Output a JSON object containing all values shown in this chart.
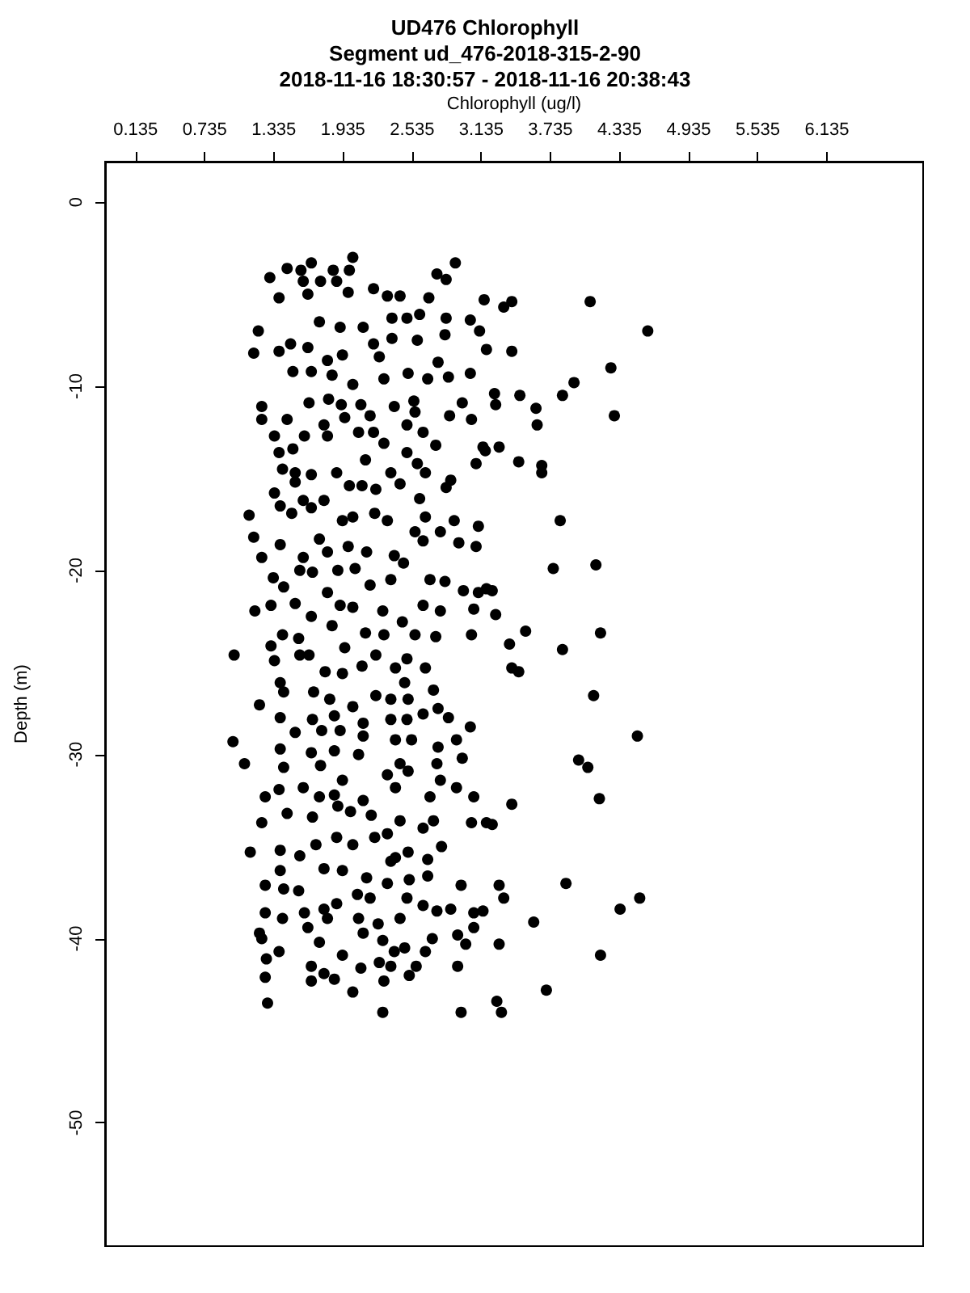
{
  "chart_data": {
    "type": "scatter",
    "title": "UD476 Chlorophyll",
    "subtitle": "Segment ud_476-2018-315-2-90\n2018-11-16 18:30:57 - 2018-11-16 20:38:43",
    "xlabel": "Chlorophyll (ug/l)",
    "ylabel": "Depth (m)",
    "xlim": [
      -0.13,
      6.97
    ],
    "ylim": [
      -56.7,
      2.2
    ],
    "xticks": [
      0.135,
      0.735,
      1.335,
      1.935,
      2.535,
      3.135,
      3.735,
      4.335,
      4.935,
      5.535,
      6.135
    ],
    "yticks": [
      0,
      -10,
      -20,
      -30,
      -40,
      -50
    ],
    "grid": false,
    "marker": "circle",
    "series": [
      {
        "color": "#000000",
        "x": [
          4.58,
          4.08,
          4.26,
          4.29,
          3.94,
          3.84,
          3.61,
          3.62,
          3.66,
          3.66,
          3.46,
          3.82,
          3.76,
          4.13,
          4.17,
          3.84,
          4.11,
          4.49,
          3.98,
          4.06,
          4.16,
          4.51,
          4.34,
          3.87,
          4.17,
          3.7,
          3.59,
          3.31,
          2.96,
          2.28,
          1.28,
          0.98,
          0.99,
          1.08,
          1.12,
          1.16,
          1.2,
          2.91,
          2.02,
          1.13,
          1.23,
          1.26,
          1.27,
          3.52,
          3.38,
          3.4,
          3.46,
          3.4,
          3.18,
          3.23,
          3.29,
          3.33,
          3.29,
          3.07,
          3.18,
          3.26,
          3.4,
          3.33,
          3.4,
          3.18,
          3.25,
          3.17,
          1.3,
          1.45,
          1.57,
          1.66,
          1.85,
          1.99,
          1.74,
          1.59,
          1.38,
          1.63,
          1.88,
          1.98,
          2.2,
          2.32,
          2.43,
          2.68,
          2.75,
          2.83,
          3.16,
          1.73,
          1.91,
          2.11,
          2.36,
          2.49,
          2.6,
          2.83,
          3.04,
          3.12,
          1.38,
          1.48,
          1.63,
          1.8,
          1.93,
          2.2,
          2.25,
          2.36,
          2.58,
          2.82,
          1.5,
          1.66,
          1.84,
          2.02,
          2.29,
          2.5,
          2.67,
          2.76,
          2.85,
          3.04,
          1.23,
          1.23,
          1.45,
          1.64,
          1.81,
          1.92,
          2.09,
          2.17,
          2.38,
          2.55,
          2.56,
          2.86,
          2.97,
          3.05,
          3.26,
          3.47,
          1.34,
          1.38,
          1.5,
          1.6,
          1.77,
          1.8,
          1.95,
          2.07,
          2.2,
          2.29,
          2.49,
          2.63,
          2.74,
          2.87,
          3.15,
          3.29,
          3.09,
          1.41,
          1.52,
          1.66,
          1.88,
          2.13,
          2.35,
          2.49,
          2.65,
          2.58,
          1.34,
          1.52,
          1.59,
          1.77,
          1.99,
          2.1,
          2.22,
          2.43,
          2.6,
          2.83,
          1.16,
          1.23,
          1.39,
          1.49,
          1.66,
          1.93,
          2.02,
          2.21,
          2.32,
          2.65,
          2.9,
          3.11,
          1.39,
          1.59,
          1.73,
          1.8,
          1.98,
          2.14,
          2.38,
          2.56,
          2.63,
          2.78,
          2.94,
          3.09,
          1.33,
          1.42,
          1.56,
          1.67,
          1.89,
          2.04,
          2.17,
          2.35,
          2.46,
          2.69,
          2.82,
          2.98,
          3.11,
          3.23,
          1.17,
          1.31,
          1.52,
          1.66,
          1.8,
          1.91,
          2.02,
          2.28,
          2.45,
          2.63,
          2.78,
          3.07,
          1.31,
          1.41,
          1.55,
          1.64,
          1.84,
          1.95,
          2.13,
          2.29,
          2.49,
          2.56,
          2.74,
          3.05,
          1.34,
          1.39,
          1.56,
          1.78,
          1.93,
          2.1,
          2.22,
          2.39,
          2.47,
          2.65,
          2.72,
          1.21,
          1.42,
          1.68,
          1.82,
          2.02,
          2.22,
          2.35,
          2.5,
          2.63,
          2.76,
          1.39,
          1.67,
          1.86,
          2.11,
          2.35,
          2.49,
          2.85,
          3.04,
          1.39,
          1.52,
          1.75,
          1.91,
          2.11,
          2.39,
          2.53,
          2.76,
          2.92,
          2.97,
          1.66,
          1.86,
          2.07,
          2.43,
          2.75,
          1.42,
          1.74,
          1.93,
          2.32,
          2.5,
          2.78,
          2.92,
          1.26,
          1.38,
          1.59,
          1.73,
          1.86,
          2.11,
          2.39,
          2.69,
          3.07,
          1.45,
          1.23,
          1.67,
          1.89,
          2.0,
          2.18,
          2.43,
          2.63,
          2.72,
          3.05,
          1.39,
          1.56,
          1.7,
          1.88,
          2.02,
          2.21,
          2.32,
          2.39,
          2.5,
          2.67,
          2.79,
          1.39,
          1.77,
          1.93,
          2.14,
          2.35,
          2.51,
          2.67,
          2.96,
          1.26,
          1.42,
          1.55,
          1.77,
          1.88,
          2.06,
          2.17,
          2.32,
          2.49,
          2.63,
          2.75,
          2.87,
          3.15,
          1.26,
          1.41,
          1.6,
          1.8,
          2.07,
          2.24,
          2.43,
          1.21,
          1.38,
          1.63,
          1.73,
          1.93,
          2.11,
          2.28,
          2.38,
          2.47,
          2.65,
          2.71,
          2.93,
          3.0,
          3.07,
          1.66,
          1.77,
          1.86,
          2.09,
          2.25,
          2.35,
          2.51,
          2.57,
          2.93,
          1.66,
          2.02,
          2.29,
          3.27
        ],
        "values": [
          -7.0,
          -5.4,
          -9.0,
          -11.6,
          -9.8,
          -10.5,
          -11.2,
          -12.1,
          -14.3,
          -14.7,
          -14.1,
          -17.3,
          -19.9,
          -19.7,
          -23.4,
          -24.3,
          -26.8,
          -29.0,
          -30.3,
          -30.7,
          -32.4,
          -37.8,
          -38.4,
          -37.0,
          -40.9,
          -42.8,
          -39.1,
          -44.0,
          -44.0,
          -44.0,
          -43.5,
          -29.3,
          -24.6,
          -30.5,
          -17.0,
          -8.2,
          -7.0,
          -3.3,
          -3.0,
          -35.3,
          -40.0,
          -42.1,
          -41.1,
          -23.3,
          -24.0,
          -25.3,
          -25.5,
          -32.7,
          -33.7,
          -33.8,
          -37.1,
          -37.8,
          -40.3,
          -38.6,
          -21.0,
          -22.4,
          -5.4,
          -5.7,
          -8.1,
          -8.0,
          -10.4,
          -13.5,
          -4.1,
          -3.6,
          -3.7,
          -3.3,
          -3.7,
          -3.7,
          -4.3,
          -4.3,
          -5.2,
          -5.0,
          -4.3,
          -4.9,
          -4.7,
          -5.1,
          -5.1,
          -5.2,
          -3.9,
          -4.2,
          -5.3,
          -6.5,
          -6.8,
          -6.8,
          -6.3,
          -6.3,
          -6.1,
          -6.3,
          -6.4,
          -7.0,
          -8.1,
          -7.7,
          -7.9,
          -8.6,
          -8.3,
          -7.7,
          -8.4,
          -7.4,
          -7.5,
          -7.2,
          -9.2,
          -9.2,
          -9.4,
          -9.9,
          -9.6,
          -9.3,
          -9.6,
          -8.7,
          -9.5,
          -9.3,
          -11.1,
          -11.8,
          -11.8,
          -10.9,
          -10.7,
          -11.0,
          -11.0,
          -11.6,
          -11.1,
          -10.8,
          -11.4,
          -11.6,
          -10.9,
          -11.8,
          -11.0,
          -10.5,
          -12.7,
          -13.6,
          -13.4,
          -12.7,
          -12.1,
          -12.7,
          -11.7,
          -12.5,
          -12.5,
          -13.1,
          -12.1,
          -12.5,
          -13.2,
          -15.1,
          -13.3,
          -13.3,
          -14.2,
          -14.5,
          -14.7,
          -14.8,
          -14.7,
          -14.0,
          -14.7,
          -13.6,
          -14.7,
          -14.2,
          -15.8,
          -15.2,
          -16.2,
          -16.2,
          -15.4,
          -15.4,
          -15.6,
          -15.3,
          -16.1,
          -15.5,
          -18.2,
          -19.3,
          -16.5,
          -16.9,
          -16.6,
          -17.3,
          -17.1,
          -16.9,
          -17.3,
          -17.1,
          -17.3,
          -17.6,
          -18.6,
          -19.3,
          -18.3,
          -19.0,
          -18.7,
          -19.0,
          -19.2,
          -17.9,
          -18.4,
          -17.9,
          -18.5,
          -18.7,
          -20.4,
          -20.9,
          -20.0,
          -20.1,
          -20.0,
          -19.9,
          -20.8,
          -20.5,
          -19.6,
          -20.5,
          -20.6,
          -21.1,
          -21.2,
          -21.1,
          -22.2,
          -21.9,
          -21.8,
          -22.5,
          -21.2,
          -21.9,
          -22.0,
          -22.2,
          -22.8,
          -21.9,
          -22.2,
          -22.1,
          -24.1,
          -23.5,
          -23.7,
          -24.6,
          -23.0,
          -24.2,
          -23.4,
          -23.5,
          -24.8,
          -23.5,
          -23.6,
          -23.5,
          -24.9,
          -26.1,
          -24.6,
          -25.5,
          -25.6,
          -25.2,
          -24.6,
          -25.3,
          -26.1,
          -25.3,
          -26.5,
          -27.3,
          -26.6,
          -26.6,
          -27.0,
          -27.4,
          -26.8,
          -27.0,
          -27.0,
          -27.8,
          -27.5,
          -28.0,
          -28.1,
          -27.9,
          -28.3,
          -28.1,
          -28.1,
          -28.0,
          -28.5,
          -29.7,
          -28.8,
          -28.7,
          -28.7,
          -29.0,
          -29.2,
          -29.2,
          -29.6,
          -29.2,
          -30.2,
          -29.9,
          -29.8,
          -30.0,
          -30.5,
          -30.5,
          -30.7,
          -30.6,
          -31.4,
          -31.1,
          -30.9,
          -31.4,
          -31.8,
          -32.3,
          -31.9,
          -31.8,
          -32.3,
          -32.2,
          -32.5,
          -31.8,
          -32.3,
          -32.3,
          -33.2,
          -33.7,
          -33.4,
          -32.8,
          -33.1,
          -33.3,
          -33.6,
          -34.0,
          -33.6,
          -33.7,
          -35.2,
          -35.5,
          -34.9,
          -34.5,
          -34.9,
          -34.5,
          -34.3,
          -35.6,
          -35.3,
          -35.7,
          -35.0,
          -36.3,
          -36.2,
          -36.3,
          -36.7,
          -35.8,
          -36.8,
          -36.6,
          -37.1,
          -37.1,
          -37.3,
          -37.4,
          -38.4,
          -38.1,
          -37.6,
          -37.8,
          -37.0,
          -37.8,
          -38.2,
          -38.5,
          -38.4,
          -38.5,
          -38.6,
          -38.9,
          -38.6,
          -38.9,
          -38.9,
          -39.2,
          -38.9,
          -39.7,
          -40.7,
          -39.4,
          -40.2,
          -40.9,
          -39.7,
          -40.1,
          -40.7,
          -40.5,
          -40.7,
          -40.0,
          -39.8,
          -40.3,
          -39.4,
          -41.5,
          -41.9,
          -42.2,
          -41.6,
          -41.3,
          -41.5,
          -42.0,
          -41.5,
          -41.5,
          -42.3,
          -42.9,
          -42.3,
          -43.4
        ]
      }
    ]
  }
}
